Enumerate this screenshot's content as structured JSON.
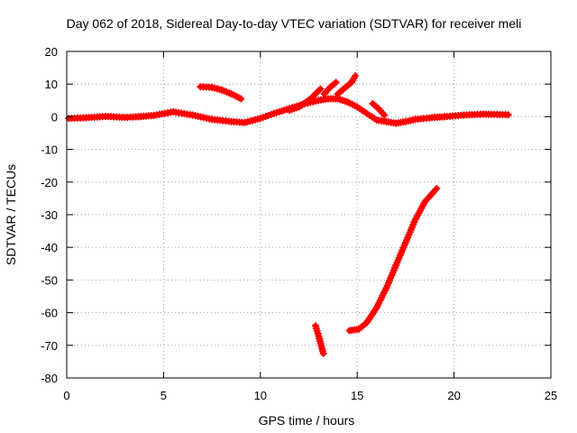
{
  "chart_data": {
    "type": "line",
    "title": "Day 062 of 2018, Sidereal Day-to-day VTEC variation (SDTVAR) for receiver meli",
    "xlabel": "GPS time / hours",
    "ylabel": "SDTVAR / TECUs",
    "xlim": [
      0,
      25
    ],
    "ylim": [
      -80,
      20
    ],
    "xticks": [
      0,
      5,
      10,
      15,
      20,
      25
    ],
    "yticks": [
      -80,
      -70,
      -60,
      -50,
      -40,
      -30,
      -20,
      -10,
      0,
      10,
      20
    ],
    "xtick_labels": [
      "0",
      "5",
      "10",
      "15",
      "20",
      "25"
    ],
    "ytick_labels": [
      "-80",
      "-70",
      "-60",
      "-50",
      "-40",
      "-30",
      "-20",
      "-10",
      "0",
      "10",
      "20"
    ],
    "grid": true,
    "legend": "none",
    "series_color": "#ff0000",
    "series": [
      {
        "name": "arc-baseline-a",
        "x": [
          0.1,
          1,
          2,
          3,
          3.7
        ],
        "y": [
          -0.5,
          -0.3,
          0.1,
          -0.2,
          0
        ]
      },
      {
        "name": "arc-baseline-b",
        "x": [
          3.7,
          4.5,
          5.5,
          6.5,
          7.5,
          8.5,
          9.2,
          10,
          10.7,
          11.5,
          12.3,
          13
        ],
        "y": [
          0,
          0.4,
          1.5,
          0.5,
          -0.8,
          -1.5,
          -1.8,
          -0.5,
          1,
          2.5,
          4,
          5
        ]
      },
      {
        "name": "arc-rising-1",
        "x": [
          11.5,
          12,
          12.6,
          13.1
        ],
        "y": [
          2,
          3,
          5.5,
          8.5
        ]
      },
      {
        "name": "arc-rising-2",
        "x": [
          13.3,
          13.6,
          13.9
        ],
        "y": [
          7,
          9,
          10.5
        ]
      },
      {
        "name": "arc-rising-3",
        "x": [
          14,
          14.3,
          14.7,
          14.9
        ],
        "y": [
          7,
          8.5,
          10.5,
          12.5
        ]
      },
      {
        "name": "arc-descending-a",
        "x": [
          13,
          13.5,
          14,
          14.5,
          15,
          15.5,
          16,
          16.5,
          17,
          17.5,
          18,
          19,
          19.5
        ],
        "y": [
          5,
          5.5,
          5.5,
          4.5,
          3,
          1,
          -1,
          -1.5,
          -2,
          -1.5,
          -0.8,
          -0.2,
          0
        ]
      },
      {
        "name": "arc-descending-b",
        "x": [
          15.8,
          16.1,
          16.4
        ],
        "y": [
          4,
          2.5,
          0.5
        ]
      },
      {
        "name": "arc-tail",
        "x": [
          19.5,
          20.5,
          21.5,
          22.8
        ],
        "y": [
          0,
          0.5,
          0.8,
          0.6
        ]
      },
      {
        "name": "arc-morning",
        "x": [
          6.9,
          7.5,
          8,
          8.5,
          9
        ],
        "y": [
          9.2,
          9,
          8.2,
          7,
          5.5
        ]
      },
      {
        "name": "arc-drop",
        "x": [
          12.85,
          13.05,
          13.25
        ],
        "y": [
          -64,
          -68,
          -72.5
        ]
      },
      {
        "name": "arc-recovery",
        "x": [
          14.6,
          15.1,
          15.5,
          16,
          16.5,
          17,
          17.5,
          18,
          18.5,
          19.1
        ],
        "y": [
          -65.5,
          -65,
          -63,
          -58.5,
          -52.5,
          -45.5,
          -38.5,
          -31.5,
          -26,
          -22
        ]
      }
    ]
  }
}
